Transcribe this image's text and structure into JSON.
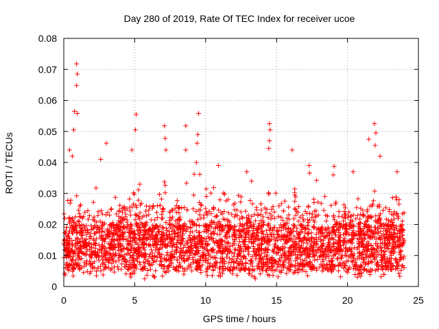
{
  "chart_data": {
    "type": "scatter",
    "title": "Day 280 of 2019, Rate Of TEC Index for receiver ucoe",
    "xlabel": "GPS time / hours",
    "ylabel": "ROTI / TECUs",
    "xlim": [
      0,
      25
    ],
    "ylim": [
      0,
      0.08
    ],
    "xticks": [
      0,
      5,
      10,
      15,
      20,
      25
    ],
    "xtick_labels": [
      "0",
      "5",
      "10",
      "15",
      "20",
      "25"
    ],
    "yticks": [
      0,
      0.01,
      0.02,
      0.03,
      0.04,
      0.05,
      0.06,
      0.07,
      0.08
    ],
    "ytick_labels": [
      "0",
      "0.01",
      "0.02",
      "0.03",
      "0.04",
      "0.05",
      "0.06",
      "0.07",
      "0.08"
    ],
    "grid": true,
    "marker": "+",
    "marker_color": "#ff0000",
    "series": [
      {
        "name": "ROTI",
        "x_range": [
          0,
          24
        ],
        "baseline_band": [
          0.005,
          0.02
        ],
        "typical_max": 0.035,
        "peaks": [
          {
            "x": 0.9,
            "y": 0.0718
          },
          {
            "x": 0.95,
            "y": 0.0685
          },
          {
            "x": 0.9,
            "y": 0.0648
          },
          {
            "x": 0.75,
            "y": 0.0565
          },
          {
            "x": 0.95,
            "y": 0.0558
          },
          {
            "x": 0.7,
            "y": 0.0505
          },
          {
            "x": 0.4,
            "y": 0.044
          },
          {
            "x": 0.6,
            "y": 0.042
          },
          {
            "x": 3.0,
            "y": 0.0462
          },
          {
            "x": 2.6,
            "y": 0.041
          },
          {
            "x": 5.1,
            "y": 0.0555
          },
          {
            "x": 5.05,
            "y": 0.0505
          },
          {
            "x": 4.8,
            "y": 0.044
          },
          {
            "x": 7.1,
            "y": 0.0518
          },
          {
            "x": 7.15,
            "y": 0.0478
          },
          {
            "x": 7.2,
            "y": 0.044
          },
          {
            "x": 8.6,
            "y": 0.0518
          },
          {
            "x": 8.6,
            "y": 0.044
          },
          {
            "x": 9.5,
            "y": 0.0558
          },
          {
            "x": 9.45,
            "y": 0.049
          },
          {
            "x": 9.4,
            "y": 0.0462
          },
          {
            "x": 9.35,
            "y": 0.04
          },
          {
            "x": 10.9,
            "y": 0.039
          },
          {
            "x": 12.9,
            "y": 0.037
          },
          {
            "x": 14.5,
            "y": 0.0525
          },
          {
            "x": 14.55,
            "y": 0.0505
          },
          {
            "x": 14.5,
            "y": 0.047
          },
          {
            "x": 14.45,
            "y": 0.0445
          },
          {
            "x": 16.1,
            "y": 0.044
          },
          {
            "x": 17.3,
            "y": 0.039
          },
          {
            "x": 19.0,
            "y": 0.036
          },
          {
            "x": 20.4,
            "y": 0.037
          },
          {
            "x": 21.5,
            "y": 0.0475
          },
          {
            "x": 21.9,
            "y": 0.0525
          },
          {
            "x": 22.0,
            "y": 0.0495
          },
          {
            "x": 21.95,
            "y": 0.0455
          },
          {
            "x": 22.3,
            "y": 0.042
          },
          {
            "x": 23.5,
            "y": 0.037
          },
          {
            "x": 13.5,
            "y": 0.0025
          },
          {
            "x": 5.7,
            "y": 0.0025
          },
          {
            "x": 1.4,
            "y": 0.0045
          },
          {
            "x": 20.8,
            "y": 0.004
          }
        ]
      }
    ]
  }
}
